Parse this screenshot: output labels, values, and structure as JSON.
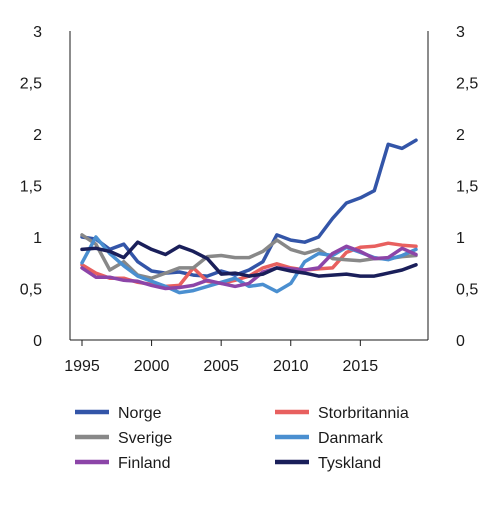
{
  "chart_data": {
    "type": "line",
    "title": "",
    "xlabel": "",
    "ylabel": "",
    "x": [
      1995,
      1996,
      1997,
      1998,
      1999,
      2000,
      2001,
      2002,
      2003,
      2004,
      2005,
      2006,
      2007,
      2008,
      2009,
      2010,
      2011,
      2012,
      2013,
      2014,
      2015,
      2016,
      2017,
      2018,
      2019
    ],
    "xticks": [
      "1995",
      "2000",
      "2005",
      "2010",
      "2015"
    ],
    "xlim": [
      1995,
      2019
    ],
    "ylim": [
      0,
      3
    ],
    "yticks_left": [
      "0",
      "0,5",
      "1",
      "1,5",
      "2",
      "2,5",
      "3"
    ],
    "yticks_right": [
      "0",
      "0,5",
      "1",
      "1,5",
      "2",
      "2,5",
      "3"
    ],
    "grid": false,
    "legend_position": "bottom",
    "series": [
      {
        "name": "Norge",
        "color": "#3355a8",
        "values": [
          1.0,
          0.98,
          0.88,
          0.93,
          0.76,
          0.67,
          0.65,
          0.66,
          0.63,
          0.62,
          0.67,
          0.63,
          0.68,
          0.76,
          1.02,
          0.97,
          0.95,
          1.0,
          1.18,
          1.33,
          1.38,
          1.45,
          1.9,
          1.86,
          1.94
        ]
      },
      {
        "name": "Storbritannia",
        "color": "#e8605f",
        "values": [
          0.73,
          0.65,
          0.6,
          0.6,
          0.56,
          0.54,
          0.52,
          0.53,
          0.7,
          0.57,
          0.55,
          0.58,
          0.62,
          0.7,
          0.74,
          0.7,
          0.68,
          0.69,
          0.7,
          0.85,
          0.9,
          0.91,
          0.94,
          0.92,
          0.91
        ]
      },
      {
        "name": "Sverige",
        "color": "#888888",
        "values": [
          1.02,
          0.93,
          0.68,
          0.76,
          0.63,
          0.6,
          0.65,
          0.7,
          0.7,
          0.81,
          0.82,
          0.8,
          0.8,
          0.86,
          0.97,
          0.88,
          0.84,
          0.88,
          0.79,
          0.78,
          0.77,
          0.79,
          0.79,
          0.81,
          0.82
        ]
      },
      {
        "name": "Danmark",
        "color": "#4a8fd0",
        "values": [
          0.75,
          1.0,
          0.84,
          0.72,
          0.62,
          0.57,
          0.52,
          0.46,
          0.48,
          0.52,
          0.56,
          0.6,
          0.52,
          0.54,
          0.47,
          0.55,
          0.76,
          0.84,
          0.82,
          0.9,
          0.85,
          0.8,
          0.78,
          0.82,
          0.88
        ]
      },
      {
        "name": "Finland",
        "color": "#8c45a8",
        "values": [
          0.7,
          0.61,
          0.61,
          0.58,
          0.57,
          0.53,
          0.5,
          0.51,
          0.53,
          0.58,
          0.55,
          0.52,
          0.55,
          0.66,
          0.7,
          0.69,
          0.68,
          0.7,
          0.84,
          0.91,
          0.86,
          0.79,
          0.8,
          0.89,
          0.83
        ]
      },
      {
        "name": "Tyskland",
        "color": "#1a1f5a",
        "values": [
          0.88,
          0.89,
          0.86,
          0.8,
          0.95,
          0.88,
          0.83,
          0.91,
          0.86,
          0.79,
          0.64,
          0.65,
          0.62,
          0.64,
          0.7,
          0.67,
          0.65,
          0.62,
          0.63,
          0.64,
          0.62,
          0.62,
          0.65,
          0.68,
          0.73
        ]
      }
    ]
  }
}
